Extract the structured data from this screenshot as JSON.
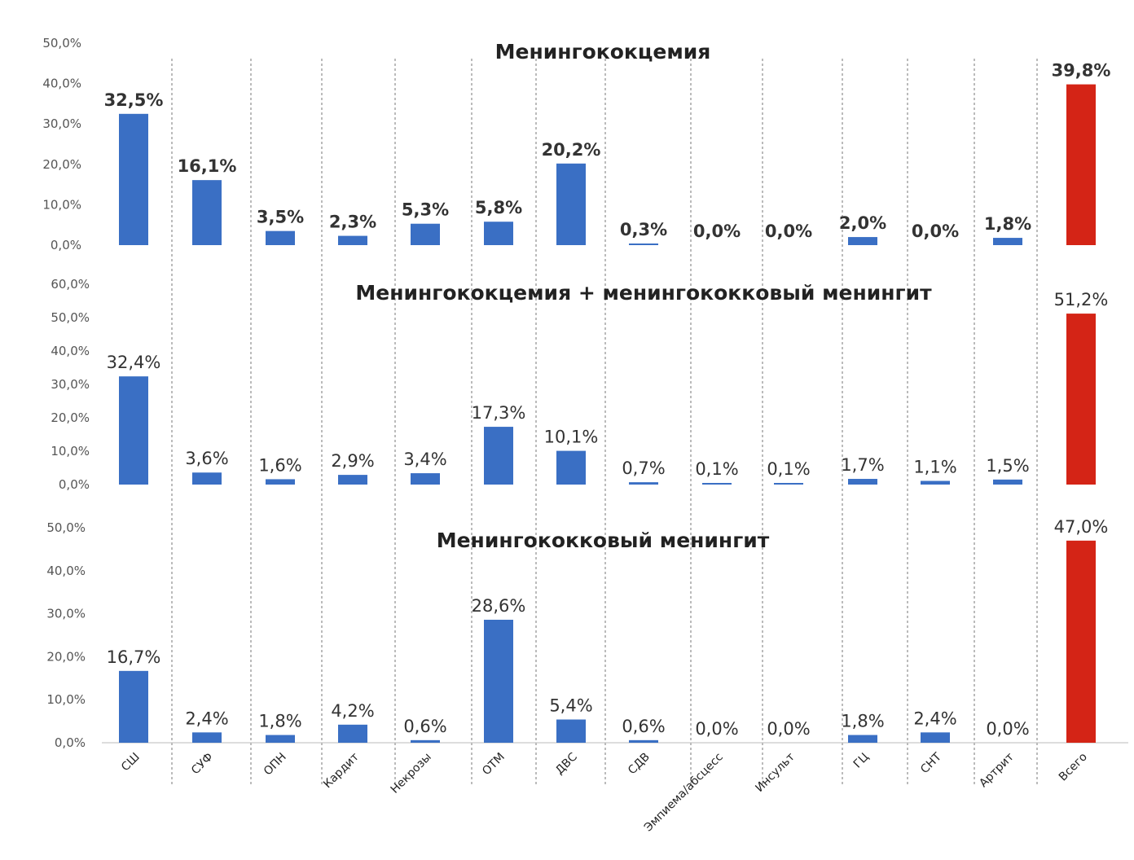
{
  "colors": {
    "bar": "#3a6fc4",
    "total_bar": "#d42416"
  },
  "categories": [
    "СШ",
    "СУФ",
    "ОПН",
    "Кардит",
    "Некрозы",
    "ОТМ",
    "ДВС",
    "СДВ",
    "Эмпиема/абсцесс",
    "Инсульт",
    "ГЦ",
    "СНТ",
    "Артрит",
    "Всего"
  ],
  "chart_data": [
    {
      "type": "bar",
      "title": "Менингококцемия",
      "categories": [
        "СШ",
        "СУФ",
        "ОПН",
        "Кардит",
        "Некрозы",
        "ОТМ",
        "ДВС",
        "СДВ",
        "Эмпиема/абсцесс",
        "Инсульт",
        "ГЦ",
        "СНТ",
        "Артрит",
        "Всего"
      ],
      "values": [
        32.5,
        16.1,
        3.5,
        2.3,
        5.3,
        5.8,
        20.2,
        0.3,
        0.0,
        0.0,
        2.0,
        0.0,
        1.8,
        39.8
      ],
      "labels": [
        "32,5%",
        "16,1%",
        "3,5%",
        "2,3%",
        "5,3%",
        "5,8%",
        "20,2%",
        "0,3%",
        "0,0%",
        "0,0%",
        "2,0%",
        "0,0%",
        "1,8%",
        "39,8%"
      ],
      "ticks": [
        "0,0%",
        "10,0%",
        "20,0%",
        "30,0%",
        "40,0%",
        "50,0%"
      ],
      "ylim": [
        0,
        50
      ],
      "xlabel": "",
      "ylabel": ""
    },
    {
      "type": "bar",
      "title": "Менингококцемия + менингококковый менингит",
      "categories": [
        "СШ",
        "СУФ",
        "ОПН",
        "Кардит",
        "Некрозы",
        "ОТМ",
        "ДВС",
        "СДВ",
        "Эмпиема/абсцесс",
        "Инсульт",
        "ГЦ",
        "СНТ",
        "Артрит",
        "Всего"
      ],
      "values": [
        32.4,
        3.6,
        1.6,
        2.9,
        3.4,
        17.3,
        10.1,
        0.7,
        0.1,
        0.1,
        1.7,
        1.1,
        1.5,
        51.2
      ],
      "labels": [
        "32,4%",
        "3,6%",
        "1,6%",
        "2,9%",
        "3,4%",
        "17,3%",
        "10,1%",
        "0,7%",
        "0,1%",
        "0,1%",
        "1,7%",
        "1,1%",
        "1,5%",
        "51,2%"
      ],
      "ticks": [
        "0,0%",
        "10,0%",
        "20,0%",
        "30,0%",
        "40,0%",
        "50,0%",
        "60,0%"
      ],
      "ylim": [
        0,
        60
      ],
      "xlabel": "",
      "ylabel": ""
    },
    {
      "type": "bar",
      "title": "Менингококковый менингит",
      "categories": [
        "СШ",
        "СУФ",
        "ОПН",
        "Кардит",
        "Некрозы",
        "ОТМ",
        "ДВС",
        "СДВ",
        "Эмпиема/абсцесс",
        "Инсульт",
        "ГЦ",
        "СНТ",
        "Артрит",
        "Всего"
      ],
      "values": [
        16.7,
        2.4,
        1.8,
        4.2,
        0.6,
        28.6,
        5.4,
        0.6,
        0.0,
        0.0,
        1.8,
        2.4,
        0.0,
        47.0
      ],
      "labels": [
        "16,7%",
        "2,4%",
        "1,8%",
        "4,2%",
        "0,6%",
        "28,6%",
        "5,4%",
        "0,6%",
        "0,0%",
        "0,0%",
        "1,8%",
        "2,4%",
        "0,0%",
        "47,0%"
      ],
      "ticks": [
        "0,0%",
        "10,0%",
        "20,0%",
        "30,0%",
        "40,0%",
        "50,0%"
      ],
      "ylim": [
        0,
        50
      ],
      "xlabel": "",
      "ylabel": ""
    }
  ]
}
